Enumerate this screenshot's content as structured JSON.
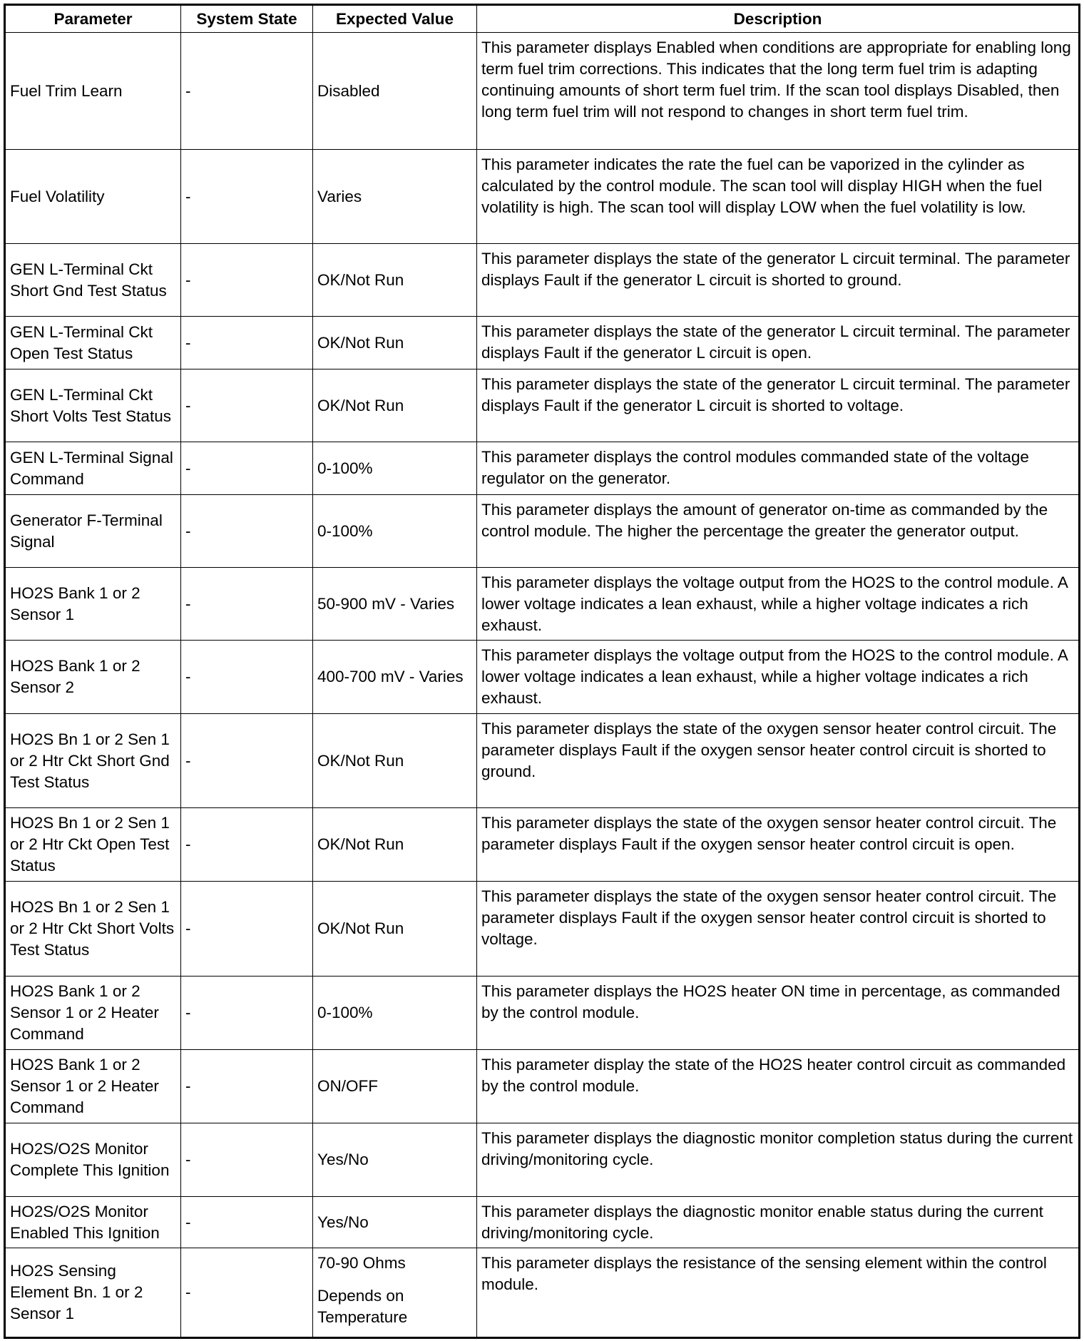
{
  "table": {
    "headers": [
      "Parameter",
      "System State",
      "Expected Value",
      "Description"
    ],
    "rows": [
      {
        "parameter": "Fuel Trim Learn",
        "system_state": "-",
        "expected_value": [
          "Disabled"
        ],
        "description": "This parameter displays Enabled when conditions are appropriate for enabling long term fuel trim corrections. This indicates that the long term fuel trim is adapting continuing amounts of short term fuel trim. If the scan tool displays Disabled, then long term fuel trim will not respond to changes in short term fuel trim."
      },
      {
        "parameter": "Fuel Volatility",
        "system_state": "-",
        "expected_value": [
          "Varies"
        ],
        "description": "This parameter indicates the rate the fuel can be vaporized in the cylinder as calculated by the control module. The scan tool will display HIGH when the fuel volatility is high. The scan tool will display LOW when the fuel volatility is low."
      },
      {
        "parameter": "GEN L-Terminal Ckt Short Gnd Test Status",
        "system_state": "-",
        "expected_value": [
          "OK/Not Run"
        ],
        "description": "This parameter displays the state of the generator L circuit terminal. The parameter displays Fault if the generator L circuit is shorted to ground."
      },
      {
        "parameter": "GEN L-Terminal Ckt Open Test Status",
        "system_state": "-",
        "expected_value": [
          "OK/Not Run"
        ],
        "description": "This parameter displays the state of the generator L circuit terminal. The parameter displays Fault if the generator L circuit is open."
      },
      {
        "parameter": "GEN L-Terminal Ckt Short Volts Test Status",
        "system_state": "-",
        "expected_value": [
          "OK/Not Run"
        ],
        "description": "This parameter displays the state of the generator L circuit terminal. The parameter displays Fault if the generator L circuit is shorted to voltage."
      },
      {
        "parameter": "GEN L-Terminal Signal Command",
        "system_state": "-",
        "expected_value": [
          "0-100%"
        ],
        "description": "This parameter displays the control modules commanded state of the voltage regulator on the generator."
      },
      {
        "parameter": "Generator F-Terminal Signal",
        "system_state": "-",
        "expected_value": [
          "0-100%"
        ],
        "description": "This parameter displays the amount of generator on-time as commanded by the control module. The higher the percentage the greater the generator output."
      },
      {
        "parameter": "HO2S Bank 1 or 2 Sensor 1",
        "system_state": "-",
        "expected_value": [
          "50-900 mV - Varies"
        ],
        "description": "This parameter displays the voltage output from the HO2S to the control module. A lower voltage indicates a lean exhaust, while a higher voltage indicates a rich exhaust."
      },
      {
        "parameter": "HO2S Bank 1 or 2 Sensor 2",
        "system_state": "-",
        "expected_value": [
          "400-700 mV - Varies"
        ],
        "description": "This parameter displays the voltage output from the HO2S to the control module. A lower voltage indicates a lean exhaust, while a higher voltage indicates a rich exhaust."
      },
      {
        "parameter": "HO2S Bn 1 or 2 Sen 1 or 2 Htr Ckt Short Gnd Test Status",
        "system_state": "-",
        "expected_value": [
          "OK/Not Run"
        ],
        "description": "This parameter displays the state of the oxygen sensor heater control circuit. The parameter displays Fault if the oxygen sensor heater control circuit is shorted to ground."
      },
      {
        "parameter": "HO2S Bn 1 or 2 Sen 1 or 2 Htr Ckt Open Test Status",
        "system_state": "-",
        "expected_value": [
          "OK/Not Run"
        ],
        "description": "This parameter displays the state of the oxygen sensor heater control circuit. The parameter displays Fault if the oxygen sensor heater control circuit is open."
      },
      {
        "parameter": "HO2S Bn 1 or 2 Sen 1 or 2 Htr Ckt Short Volts Test Status",
        "system_state": "-",
        "expected_value": [
          "OK/Not Run"
        ],
        "description": "This parameter displays the state of the oxygen sensor heater control circuit. The parameter displays Fault if the oxygen sensor heater control circuit is shorted to voltage."
      },
      {
        "parameter": "HO2S Bank 1 or 2 Sensor 1 or 2 Heater Command",
        "system_state": "-",
        "expected_value": [
          "0-100%"
        ],
        "description": "This parameter displays the HO2S heater ON time in percentage, as commanded by the control module."
      },
      {
        "parameter": "HO2S Bank 1 or 2 Sensor 1 or 2 Heater Command",
        "system_state": "-",
        "expected_value": [
          "ON/OFF"
        ],
        "description": "This parameter display the state of the HO2S heater control circuit as commanded by the control module."
      },
      {
        "parameter": "HO2S/O2S Monitor Complete This Ignition",
        "system_state": "-",
        "expected_value": [
          "Yes/No"
        ],
        "description": "This parameter displays the diagnostic monitor completion status during the current driving/monitoring cycle."
      },
      {
        "parameter": "HO2S/O2S Monitor Enabled This Ignition",
        "system_state": "-",
        "expected_value": [
          "Yes/No"
        ],
        "description": "This parameter displays the diagnostic monitor enable status during the current driving/monitoring cycle."
      },
      {
        "parameter": "HO2S Sensing Element Bn. 1 or 2 Sensor 1",
        "system_state": "-",
        "expected_value": [
          "70-90 Ohms",
          "Depends on Temperature"
        ],
        "description": "This parameter displays the resistance of the sensing element within the control module."
      }
    ]
  }
}
